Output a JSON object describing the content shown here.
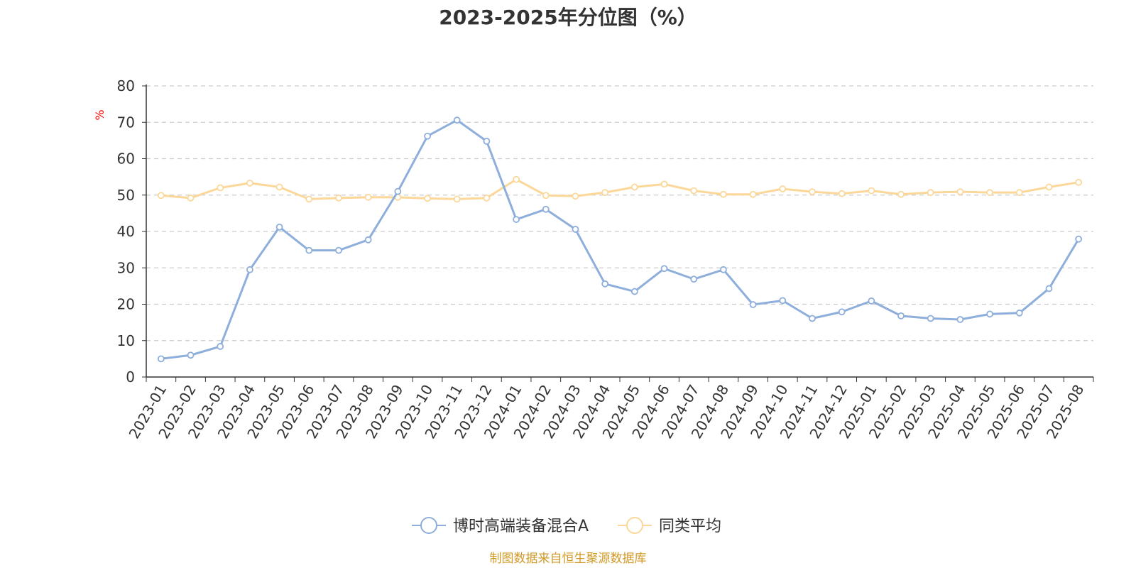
{
  "chart_data": {
    "type": "line",
    "title": "2023-2025年分位图（%）",
    "ylabel": "%",
    "ylim": [
      0,
      80
    ],
    "yticks": [
      0,
      10,
      20,
      30,
      40,
      50,
      60,
      70,
      80
    ],
    "grid": true,
    "legend_position": "bottom-center",
    "x": [
      "2023-01",
      "2023-02",
      "2023-03",
      "2023-04",
      "2023-05",
      "2023-06",
      "2023-07",
      "2023-08",
      "2023-09",
      "2023-10",
      "2023-11",
      "2023-12",
      "2024-01",
      "2024-02",
      "2024-03",
      "2024-04",
      "2024-05",
      "2024-06",
      "2024-07",
      "2024-08",
      "2024-09",
      "2024-10",
      "2024-11",
      "2024-12",
      "2025-01",
      "2025-02",
      "2025-03",
      "2025-04",
      "2025-05",
      "2025-06",
      "2025-07",
      "2025-08"
    ],
    "series": [
      {
        "name": "博时高端装备混合A",
        "color": "#8eaedb",
        "values": [
          5.0,
          6.0,
          8.4,
          29.5,
          41.2,
          34.8,
          34.8,
          37.7,
          51.0,
          66.2,
          70.6,
          64.8,
          43.3,
          46.1,
          40.6,
          25.6,
          23.5,
          29.8,
          26.9,
          29.5,
          19.9,
          21.0,
          16.1,
          17.9,
          20.9,
          16.8,
          16.1,
          15.8,
          17.3,
          17.6,
          24.3,
          37.9
        ]
      },
      {
        "name": "同类平均",
        "color": "#fbd89a",
        "values": [
          49.9,
          49.2,
          52.0,
          53.3,
          52.2,
          48.9,
          49.2,
          49.4,
          49.4,
          49.1,
          48.9,
          49.2,
          54.3,
          49.9,
          49.7,
          50.7,
          52.2,
          53.0,
          51.2,
          50.2,
          50.2,
          51.7,
          50.9,
          50.4,
          51.2,
          50.2,
          50.7,
          50.9,
          50.7,
          50.7,
          52.2,
          53.5
        ]
      }
    ]
  },
  "footer": {
    "source": "制图数据来自恒生聚源数据库"
  }
}
